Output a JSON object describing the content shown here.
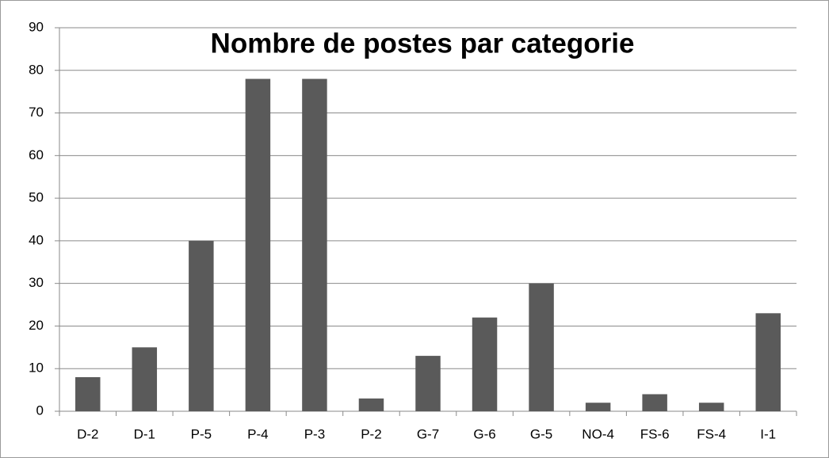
{
  "chart_data": {
    "type": "bar",
    "title": "Nombre de postes par categorie",
    "categories": [
      "D-2",
      "D-1",
      "P-5",
      "P-4",
      "P-3",
      "P-2",
      "G-7",
      "G-6",
      "G-5",
      "NO-4",
      "FS-6",
      "FS-4",
      "I-1"
    ],
    "values": [
      8,
      15,
      40,
      78,
      78,
      3,
      13,
      22,
      30,
      2,
      4,
      2,
      23
    ],
    "color": "#5a5a5a",
    "ylim": [
      0,
      90
    ],
    "yticks": [
      0,
      10,
      20,
      30,
      40,
      50,
      60,
      70,
      80,
      90
    ],
    "grid": true
  }
}
